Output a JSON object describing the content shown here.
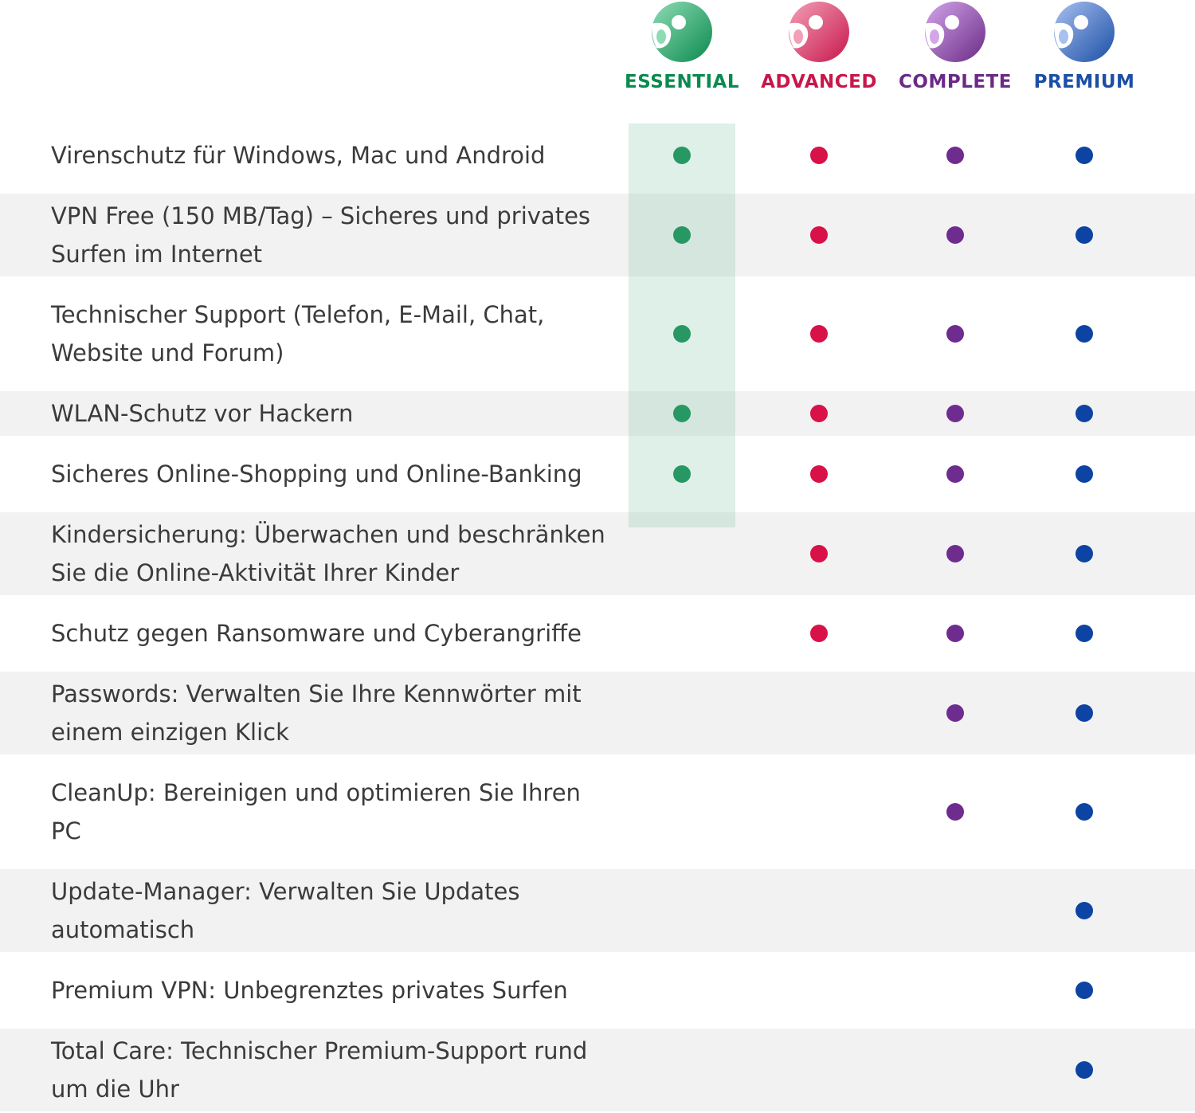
{
  "plans": [
    {
      "name": "ESSENTIAL",
      "color": "#0b8a4f",
      "dot": "#0b8a4f",
      "light": "#8fdcb4",
      "icon": "essential-logo-icon"
    },
    {
      "name": "ADVANCED",
      "color": "#c8174b",
      "dot": "#d81149",
      "light": "#f3a0b7",
      "icon": "advanced-logo-icon"
    },
    {
      "name": "COMPLETE",
      "color": "#6b2a86",
      "dot": "#6f2c8f",
      "light": "#d3a6ea",
      "icon": "complete-logo-icon"
    },
    {
      "name": "PREMIUM",
      "color": "#1b4fa6",
      "dot": "#0d44a3",
      "light": "#a8c0f0",
      "icon": "premium-logo-icon"
    }
  ],
  "features": [
    {
      "label": "Virenschutz für Windows, Mac und Android",
      "included": [
        true,
        true,
        true,
        true
      ]
    },
    {
      "label": "VPN Free (150 MB/Tag) – Sicheres und privates Surfen im Internet",
      "included": [
        true,
        true,
        true,
        true
      ]
    },
    {
      "label": "Technischer Support (Telefon, E-Mail, Chat, Website und Forum)",
      "included": [
        true,
        true,
        true,
        true
      ]
    },
    {
      "label": "WLAN-Schutz vor Hackern",
      "included": [
        true,
        true,
        true,
        true
      ]
    },
    {
      "label": "Sicheres Online-Shopping und Online-Banking",
      "included": [
        true,
        true,
        true,
        true
      ]
    },
    {
      "label": "Kindersicherung: Überwachen und beschränken Sie die Online-Aktivität Ihrer Kinder",
      "included": [
        false,
        true,
        true,
        true
      ]
    },
    {
      "label": "Schutz gegen Ransomware und Cyberangriffe",
      "included": [
        false,
        true,
        true,
        true
      ]
    },
    {
      "label": "Passwords: Verwalten Sie Ihre Kennwörter mit einem einzigen Klick",
      "included": [
        false,
        false,
        true,
        true
      ]
    },
    {
      "label": "CleanUp: Bereinigen und optimieren Sie Ihren PC",
      "included": [
        false,
        false,
        true,
        true
      ]
    },
    {
      "label": "Update-Manager: Verwalten Sie Updates automatisch",
      "included": [
        false,
        false,
        false,
        true
      ]
    },
    {
      "label": "Premium VPN: Unbegrenztes privates Surfen",
      "included": [
        false,
        false,
        false,
        true
      ]
    },
    {
      "label": "Total Care: Technischer Premium-Support rund um die Uhr",
      "included": [
        false,
        false,
        false,
        true
      ]
    }
  ],
  "highlight_color": "#7ac49e"
}
